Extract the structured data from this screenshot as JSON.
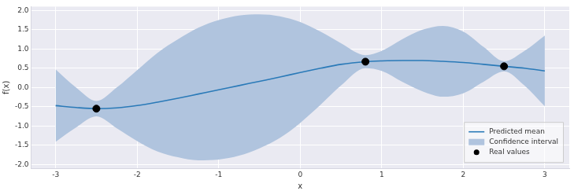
{
  "chart_data": {
    "type": "line",
    "xlabel": "x",
    "ylabel": "f(x)",
    "x": [
      -3,
      -2.75,
      -2.5,
      -2.25,
      -2,
      -1.75,
      -1.5,
      -1.25,
      -1,
      -0.75,
      -0.5,
      -0.25,
      0,
      0.25,
      0.5,
      0.8,
      1,
      1.25,
      1.5,
      1.75,
      2,
      2.25,
      2.5,
      2.75,
      3
    ],
    "xlim": [
      -3.3,
      3.3
    ],
    "xticks": [
      -3,
      -2,
      -1,
      0,
      1,
      2,
      3
    ],
    "ylim": [
      -2.1,
      2.1
    ],
    "yticks": [
      {
        "value": -2,
        "label": "-2.0"
      },
      -1.5,
      {
        "value": -1,
        "label": "-1.0"
      },
      -0.5,
      {
        "value": 0,
        "label": "0.0"
      },
      0.5,
      {
        "value": 1,
        "label": "1.0"
      },
      1.5,
      {
        "value": 2,
        "label": "2.0"
      }
    ],
    "grid": true,
    "legend": "lower right",
    "series": [
      {
        "name": "Predicted mean",
        "type": "line",
        "color": "#2a7ab8",
        "values": [
          -0.47,
          -0.52,
          -0.55,
          -0.53,
          -0.47,
          -0.38,
          -0.28,
          -0.17,
          -0.06,
          0.05,
          0.16,
          0.27,
          0.39,
          0.5,
          0.6,
          0.67,
          0.69,
          0.7,
          0.7,
          0.68,
          0.65,
          0.6,
          0.55,
          0.5,
          0.43
        ]
      },
      {
        "name": "Confidence interval",
        "type": "area",
        "color": "#b0c4de",
        "upper": [
          0.47,
          0.0,
          -0.35,
          0.0,
          0.45,
          0.9,
          1.25,
          1.55,
          1.75,
          1.87,
          1.9,
          1.85,
          1.7,
          1.45,
          1.15,
          0.84,
          0.95,
          1.25,
          1.5,
          1.6,
          1.45,
          1.05,
          0.68,
          0.95,
          1.35
        ],
        "lower": [
          -1.41,
          -1.04,
          -0.75,
          -1.06,
          -1.39,
          -1.66,
          -1.81,
          -1.89,
          -1.87,
          -1.77,
          -1.58,
          -1.31,
          -0.92,
          -0.45,
          0.05,
          0.5,
          0.43,
          0.15,
          -0.1,
          -0.24,
          -0.15,
          0.15,
          0.42,
          0.05,
          -0.49
        ]
      },
      {
        "name": "Real values",
        "type": "scatter",
        "color": "#000000",
        "x": [
          -2.5,
          0.8,
          2.5
        ],
        "values": [
          -0.55,
          0.67,
          0.55
        ]
      }
    ]
  }
}
